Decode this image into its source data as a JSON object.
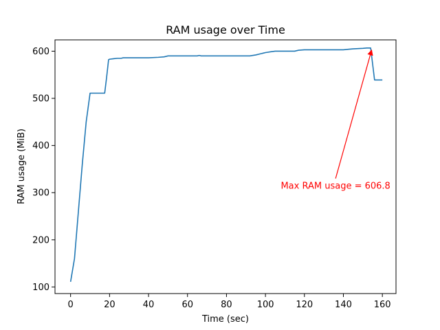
{
  "chart_data": {
    "type": "line",
    "title": "RAM usage over Time",
    "xlabel": "Time (sec)",
    "ylabel": "RAM usage (MiB)",
    "xlim": [
      -8,
      167
    ],
    "ylim": [
      86,
      624
    ],
    "xticks": [
      0,
      20,
      40,
      60,
      80,
      100,
      120,
      140,
      160
    ],
    "yticks": [
      100,
      200,
      300,
      400,
      500,
      600
    ],
    "grid": false,
    "series": [
      {
        "color": "#1f77b4",
        "x": [
          0,
          2,
          4,
          6,
          8,
          10,
          12,
          14,
          16,
          17.5,
          18.5,
          19.5,
          20,
          22,
          24,
          26,
          27,
          28,
          30,
          35,
          40,
          45,
          48,
          50,
          55,
          60,
          65,
          66,
          67,
          70,
          75,
          80,
          85,
          88,
          92,
          95,
          98,
          100,
          103,
          105,
          110,
          115,
          117,
          120,
          125,
          130,
          135,
          140,
          145,
          150,
          152,
          154,
          156,
          157,
          158,
          160
        ],
        "y": [
          111,
          160,
          260,
          360,
          450,
          511,
          511,
          511,
          511,
          511,
          545,
          582,
          583,
          584,
          585,
          585,
          586,
          586,
          586,
          586,
          586,
          587,
          588,
          590,
          590,
          590,
          590,
          591,
          590,
          590,
          590,
          590,
          590,
          590,
          590,
          592,
          595,
          597,
          599,
          600,
          600,
          600,
          602,
          603,
          603,
          603,
          603,
          603,
          605,
          606,
          606.8,
          606.8,
          539,
          539,
          539,
          539
        ]
      }
    ],
    "annotation": {
      "text": "Max RAM usage = 606.8",
      "color": "#ff0000",
      "point": [
        154.5,
        606.8
      ],
      "text_anchor_point": [
        136,
        330
      ]
    }
  }
}
